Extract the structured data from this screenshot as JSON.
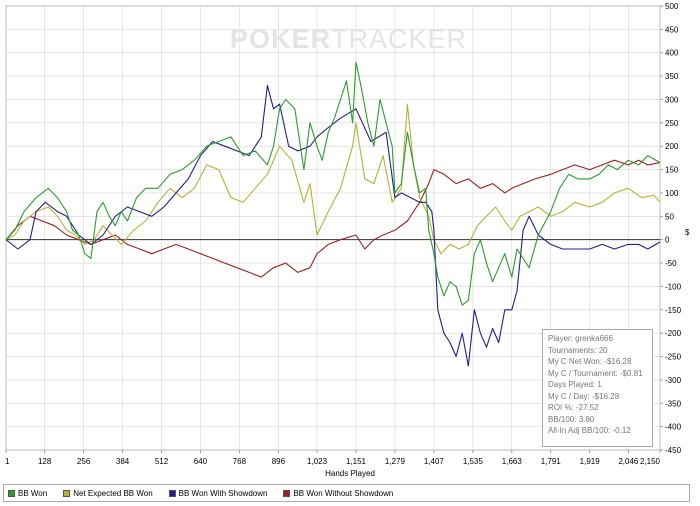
{
  "watermark": {
    "brand_left": "POKER",
    "brand_right": "TRACKER"
  },
  "chart_data": {
    "type": "line",
    "title": "",
    "xlabel": "Hands Played",
    "ylabel": "$",
    "xlim": [
      1,
      2150
    ],
    "ylim": [
      -450,
      500
    ],
    "x_ticks": [
      1,
      128,
      256,
      384,
      512,
      640,
      768,
      896,
      1023,
      1151,
      1279,
      1407,
      1535,
      1663,
      1791,
      1919,
      2046,
      2150
    ],
    "x_tick_labels": [
      "1",
      "128",
      "256",
      "384",
      "512",
      "640",
      "768",
      "896",
      "1,023",
      "1,151",
      "1,279",
      "1,407",
      "1,535",
      "1,663",
      "1,791",
      "1,919",
      "2,046",
      "2,150"
    ],
    "y_ticks": [
      -450,
      -400,
      -350,
      -300,
      -250,
      -200,
      -150,
      -100,
      -50,
      0,
      50,
      100,
      150,
      200,
      250,
      300,
      350,
      400,
      450,
      500
    ],
    "grid": true,
    "legend_position": "bottom",
    "series": [
      {
        "name": "BB Won",
        "color": "#2e9b2e",
        "x": [
          1,
          30,
          60,
          100,
          140,
          170,
          200,
          220,
          240,
          260,
          280,
          300,
          320,
          340,
          360,
          380,
          400,
          430,
          460,
          500,
          540,
          580,
          620,
          660,
          700,
          740,
          780,
          820,
          860,
          880,
          900,
          920,
          950,
          980,
          1000,
          1023,
          1040,
          1060,
          1080,
          1100,
          1120,
          1140,
          1151,
          1170,
          1190,
          1210,
          1230,
          1250,
          1270,
          1279,
          1300,
          1320,
          1340,
          1360,
          1380,
          1390,
          1407,
          1420,
          1440,
          1460,
          1480,
          1500,
          1520,
          1540,
          1560,
          1580,
          1600,
          1620,
          1640,
          1663,
          1680,
          1700,
          1720,
          1750,
          1791,
          1820,
          1850,
          1880,
          1919,
          1950,
          1980,
          2010,
          2046,
          2080,
          2110,
          2150
        ],
        "values": [
          0,
          20,
          60,
          90,
          110,
          90,
          60,
          20,
          10,
          -30,
          -40,
          60,
          80,
          50,
          30,
          60,
          40,
          90,
          110,
          110,
          140,
          150,
          170,
          200,
          210,
          220,
          180,
          190,
          160,
          200,
          280,
          300,
          280,
          150,
          250,
          200,
          170,
          230,
          260,
          300,
          340,
          250,
          380,
          320,
          250,
          200,
          300,
          250,
          200,
          100,
          120,
          230,
          160,
          100,
          110,
          20,
          -30,
          -80,
          -120,
          -90,
          -100,
          -140,
          -130,
          -30,
          0,
          -50,
          -90,
          -60,
          -30,
          -80,
          -20,
          -40,
          -60,
          10,
          60,
          110,
          140,
          130,
          130,
          140,
          160,
          150,
          170,
          160,
          180,
          165
        ]
      },
      {
        "name": "Net Expected BB Won",
        "color": "#b5b234",
        "x": [
          1,
          30,
          60,
          100,
          140,
          170,
          200,
          230,
          260,
          290,
          320,
          350,
          380,
          420,
          460,
          500,
          540,
          580,
          620,
          660,
          700,
          740,
          780,
          820,
          860,
          900,
          940,
          980,
          1000,
          1023,
          1060,
          1100,
          1140,
          1151,
          1180,
          1210,
          1240,
          1270,
          1300,
          1320,
          1340,
          1360,
          1390,
          1407,
          1430,
          1460,
          1490,
          1520,
          1550,
          1580,
          1610,
          1640,
          1663,
          1690,
          1720,
          1750,
          1791,
          1830,
          1870,
          1919,
          1960,
          2000,
          2046,
          2090,
          2130,
          2150
        ],
        "values": [
          0,
          10,
          40,
          60,
          70,
          50,
          20,
          10,
          -10,
          0,
          30,
          10,
          -10,
          20,
          40,
          80,
          110,
          90,
          110,
          160,
          150,
          90,
          80,
          110,
          140,
          200,
          170,
          80,
          120,
          10,
          60,
          110,
          200,
          250,
          130,
          120,
          180,
          80,
          110,
          290,
          160,
          90,
          50,
          0,
          -30,
          -10,
          -20,
          -10,
          30,
          50,
          70,
          40,
          20,
          50,
          60,
          70,
          50,
          60,
          80,
          70,
          80,
          100,
          110,
          90,
          95,
          80
        ]
      },
      {
        "name": "BB Won With Showdown",
        "color": "#20208c",
        "x": [
          1,
          40,
          80,
          100,
          130,
          170,
          200,
          240,
          280,
          320,
          360,
          400,
          440,
          480,
          520,
          560,
          600,
          640,
          680,
          720,
          760,
          800,
          840,
          860,
          880,
          900,
          930,
          960,
          1000,
          1023,
          1060,
          1100,
          1151,
          1200,
          1250,
          1279,
          1300,
          1330,
          1360,
          1380,
          1400,
          1407,
          1420,
          1440,
          1460,
          1480,
          1500,
          1520,
          1540,
          1560,
          1580,
          1600,
          1620,
          1640,
          1663,
          1680,
          1700,
          1720,
          1750,
          1791,
          1830,
          1870,
          1919,
          1960,
          2000,
          2046,
          2080,
          2110,
          2150
        ],
        "values": [
          0,
          -20,
          0,
          60,
          80,
          60,
          50,
          10,
          -10,
          10,
          50,
          70,
          60,
          50,
          70,
          100,
          130,
          180,
          210,
          200,
          190,
          180,
          220,
          330,
          280,
          290,
          200,
          190,
          200,
          220,
          240,
          260,
          280,
          210,
          230,
          90,
          100,
          90,
          80,
          80,
          60,
          20,
          -150,
          -200,
          -220,
          -250,
          -200,
          -270,
          -150,
          -200,
          -230,
          -190,
          -220,
          -150,
          -150,
          -110,
          20,
          50,
          10,
          -10,
          -20,
          -20,
          -20,
          -10,
          -20,
          -10,
          -10,
          -20,
          -5
        ]
      },
      {
        "name": "BB Won Without Showdown",
        "color": "#9c2020",
        "x": [
          1,
          40,
          80,
          120,
          160,
          200,
          240,
          280,
          320,
          360,
          400,
          440,
          480,
          520,
          560,
          600,
          640,
          680,
          720,
          760,
          800,
          840,
          880,
          920,
          960,
          1000,
          1023,
          1060,
          1100,
          1151,
          1180,
          1210,
          1240,
          1279,
          1320,
          1360,
          1390,
          1407,
          1440,
          1480,
          1520,
          1560,
          1600,
          1640,
          1663,
          1700,
          1740,
          1791,
          1830,
          1870,
          1919,
          1960,
          2000,
          2046,
          2080,
          2110,
          2150
        ],
        "values": [
          0,
          30,
          50,
          40,
          30,
          10,
          0,
          -10,
          0,
          10,
          -10,
          -20,
          -30,
          -20,
          -10,
          -20,
          -30,
          -40,
          -50,
          -60,
          -70,
          -80,
          -60,
          -50,
          -70,
          -60,
          -30,
          -10,
          0,
          10,
          -20,
          0,
          10,
          20,
          40,
          80,
          120,
          150,
          140,
          120,
          130,
          110,
          120,
          100,
          110,
          120,
          130,
          140,
          150,
          160,
          150,
          160,
          170,
          160,
          170,
          160,
          165
        ]
      }
    ]
  },
  "stats": {
    "player": "Player: grenka666",
    "tournaments": "Tournaments: 20",
    "net_won": "My C Net Won: -$16.28",
    "per_tournament": "My C / Tournament: -$0.81",
    "days_played": "Days Played: 1",
    "per_day": "My C / Day: -$16.28",
    "roi": "ROI %: -27.52",
    "bb100": "BB/100: 3.80",
    "allin_bb100": "All-In Adj BB/100: -0.12"
  }
}
